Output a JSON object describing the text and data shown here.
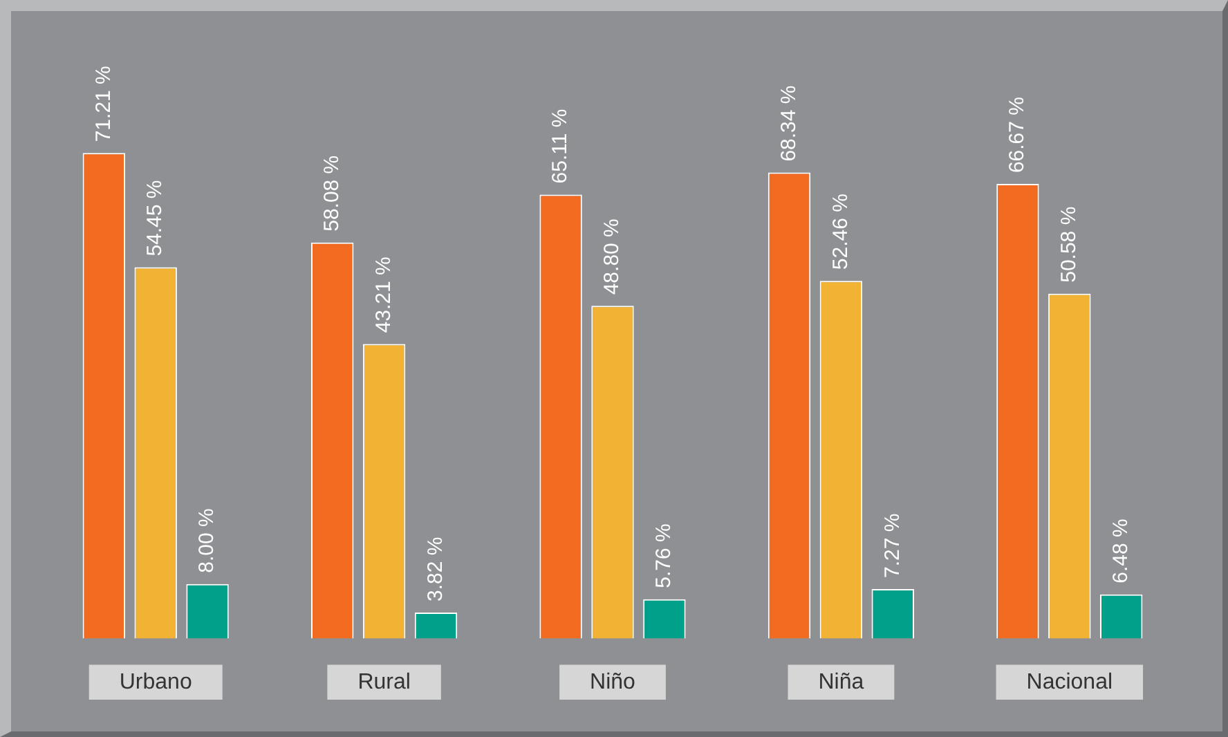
{
  "chart_data": {
    "type": "bar",
    "categories": [
      "Urbano",
      "Rural",
      "Niño",
      "Niña",
      "Nacional"
    ],
    "series": [
      {
        "color": "#f26b21",
        "values": [
          71.21,
          58.08,
          65.11,
          68.34,
          66.67
        ],
        "value_labels": [
          "71.21 %",
          "58.08 %",
          "65.11 %",
          "68.34 %",
          "66.67 %"
        ]
      },
      {
        "color": "#f2b233",
        "values": [
          54.45,
          43.21,
          48.8,
          52.46,
          50.58
        ],
        "value_labels": [
          "54.45 %",
          "43.21 %",
          "48.80 %",
          "52.46 %",
          "50.58 %"
        ]
      },
      {
        "color": "#00a08a",
        "values": [
          8.0,
          3.82,
          5.76,
          7.27,
          6.48
        ],
        "value_labels": [
          "8.00 %",
          "3.82 %",
          "5.76 %",
          "7.27 %",
          "6.48 %"
        ]
      }
    ],
    "grid": false,
    "legend": false,
    "tick_labels": "x"
  }
}
